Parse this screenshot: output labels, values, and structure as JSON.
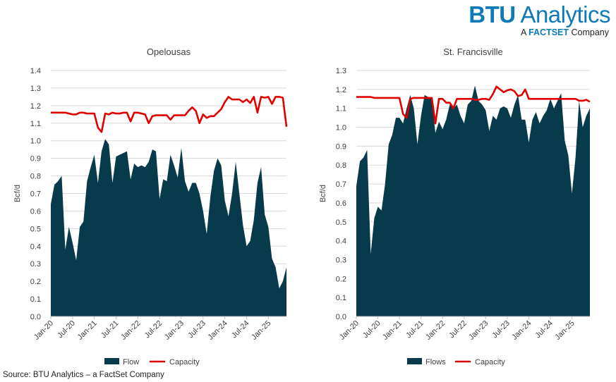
{
  "logo": {
    "brand": "BTU",
    "name": " Analytics",
    "sub_prefix": "A ",
    "sub_factset": "FACTSET",
    "sub_suffix": " Company"
  },
  "source": "Source: BTU Analytics – a FactSet Company",
  "colors": {
    "flow": "#073b4c",
    "capacity": "#e00000",
    "brand": "#0e7ab8",
    "grid": "#d9d9d9",
    "axis": "#bfbfbf"
  },
  "chart_data": [
    {
      "type": "area",
      "title": "Opelousas",
      "ylabel": "Bcf/d",
      "xlabel": "",
      "ylim": [
        0,
        1.4
      ],
      "ytick_step": 0.1,
      "grid": true,
      "legend_position": "bottom",
      "x_start": "Jan-20",
      "x_count": 66,
      "x_ticks": [
        "Jan-20",
        "Jul-20",
        "Jan-21",
        "Jul-21",
        "Jan-22",
        "Jul-22",
        "Jan-23",
        "Jul-23",
        "Jan-24",
        "Jul-24",
        "Jan-25"
      ],
      "series": [
        {
          "name": "Flow",
          "kind": "area",
          "values": [
            0.64,
            0.75,
            0.77,
            0.8,
            0.38,
            0.51,
            0.42,
            0.32,
            0.51,
            0.54,
            0.77,
            0.85,
            0.92,
            0.76,
            0.94,
            1.01,
            0.98,
            0.76,
            0.91,
            0.92,
            0.93,
            0.94,
            0.78,
            0.87,
            0.85,
            0.86,
            0.85,
            0.88,
            0.95,
            0.94,
            0.67,
            0.78,
            0.77,
            0.92,
            0.86,
            0.79,
            0.96,
            0.77,
            0.71,
            0.76,
            0.76,
            0.7,
            0.6,
            0.47,
            0.68,
            0.83,
            0.9,
            0.86,
            0.66,
            0.57,
            0.7,
            0.88,
            0.7,
            0.52,
            0.4,
            0.43,
            0.55,
            0.76,
            0.85,
            0.58,
            0.51,
            0.33,
            0.28,
            0.16,
            0.2,
            0.28
          ]
        },
        {
          "name": "Capacity",
          "kind": "line",
          "values": [
            1.16,
            1.16,
            1.16,
            1.16,
            1.16,
            1.155,
            1.15,
            1.15,
            1.16,
            1.16,
            1.155,
            1.155,
            1.155,
            1.075,
            1.05,
            1.155,
            1.15,
            1.16,
            1.155,
            1.155,
            1.16,
            1.16,
            1.11,
            1.16,
            1.16,
            1.155,
            1.15,
            1.1,
            1.14,
            1.145,
            1.145,
            1.145,
            1.145,
            1.12,
            1.145,
            1.145,
            1.145,
            1.145,
            1.17,
            1.19,
            1.17,
            1.1,
            1.15,
            1.13,
            1.14,
            1.14,
            1.16,
            1.18,
            1.22,
            1.25,
            1.235,
            1.235,
            1.235,
            1.22,
            1.235,
            1.215,
            1.25,
            1.16,
            1.25,
            1.245,
            1.25,
            1.21,
            1.25,
            1.25,
            1.245,
            1.08
          ]
        }
      ]
    },
    {
      "type": "area",
      "title": "St. Francisville",
      "ylabel": "Bcf/d",
      "xlabel": "",
      "ylim": [
        0,
        1.3
      ],
      "ytick_step": 0.1,
      "grid": true,
      "legend_position": "bottom",
      "x_start": "Jan-20",
      "x_count": 66,
      "x_ticks": [
        "Jan-20",
        "Jul-20",
        "Jan-21",
        "Jul-21",
        "Jan-22",
        "Jul-22",
        "Jan-23",
        "Jul-23",
        "Jan-24",
        "Jul-24",
        "Jan-25"
      ],
      "series": [
        {
          "name": "Flows",
          "kind": "area",
          "values": [
            0.69,
            0.82,
            0.84,
            0.88,
            0.33,
            0.52,
            0.58,
            0.56,
            0.7,
            0.91,
            0.96,
            1.05,
            1.05,
            1.02,
            1.1,
            1.17,
            1.1,
            0.91,
            1.06,
            1.17,
            1.16,
            1.15,
            0.97,
            1.03,
            0.99,
            1.04,
            1.12,
            1.1,
            1.12,
            1.06,
            1.02,
            1.12,
            1.14,
            1.22,
            1.14,
            1.12,
            1.09,
            0.98,
            1.06,
            1.04,
            1.1,
            1.11,
            1.1,
            1.05,
            1.12,
            1.17,
            1.04,
            1.04,
            0.92,
            1.04,
            1.08,
            1.02,
            1.06,
            1.09,
            1.15,
            1.1,
            1.14,
            1.18,
            0.93,
            0.85,
            0.65,
            0.84,
            1.14,
            1.0,
            1.06,
            1.1
          ]
        },
        {
          "name": "Capacity",
          "kind": "line",
          "values": [
            1.16,
            1.16,
            1.16,
            1.16,
            1.16,
            1.155,
            1.155,
            1.155,
            1.155,
            1.155,
            1.155,
            1.155,
            1.155,
            1.07,
            1.05,
            1.15,
            1.155,
            1.155,
            1.155,
            1.155,
            1.155,
            1.155,
            1.02,
            1.15,
            1.15,
            1.13,
            1.13,
            1.1,
            1.15,
            1.15,
            1.15,
            1.15,
            1.15,
            1.145,
            1.145,
            1.15,
            1.15,
            1.145,
            1.175,
            1.215,
            1.2,
            1.185,
            1.195,
            1.2,
            1.19,
            1.165,
            1.17,
            1.2,
            1.15,
            1.15,
            1.15,
            1.15,
            1.15,
            1.15,
            1.15,
            1.15,
            1.15,
            1.15,
            1.15,
            1.15,
            1.15,
            1.15,
            1.14,
            1.14,
            1.145,
            1.135
          ]
        }
      ]
    }
  ]
}
